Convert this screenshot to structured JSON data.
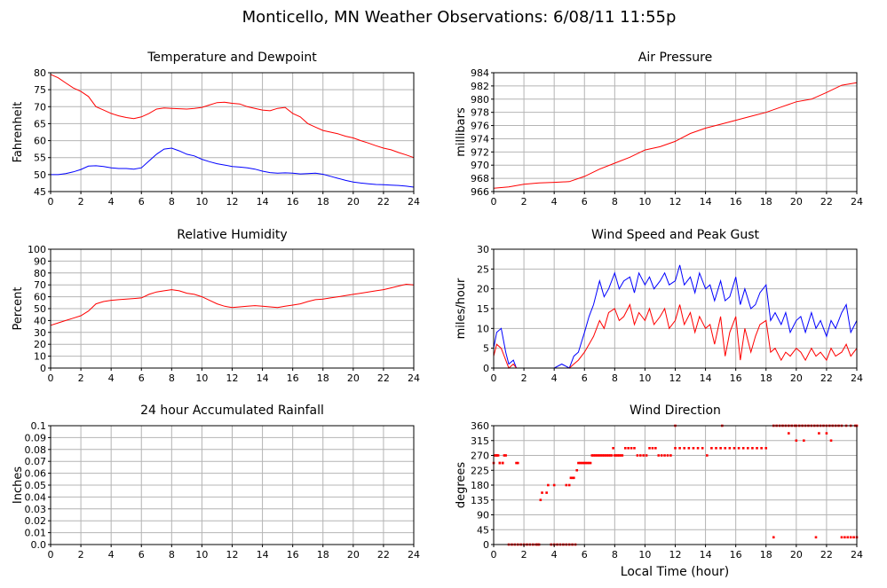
{
  "page": {
    "title": "Monticello, MN Weather Observations: 6/08/11 11:55p",
    "footer_xlabel": "Local Time (hour)"
  },
  "colors": {
    "red": "#ff0000",
    "blue": "#0000ff",
    "grid": "#b4b4b4",
    "frame": "#000000"
  },
  "x_ticks": [
    0,
    2,
    4,
    6,
    8,
    10,
    12,
    14,
    16,
    18,
    20,
    22,
    24
  ],
  "chart_data": [
    {
      "id": "temp",
      "type": "line",
      "title": "Temperature and Dewpoint",
      "xlabel": "",
      "ylabel": "Fahrenheit",
      "xlim": [
        0,
        24
      ],
      "ylim": [
        45,
        80
      ],
      "yticks": [
        45,
        50,
        55,
        60,
        65,
        70,
        75,
        80
      ],
      "grid": true,
      "series": [
        {
          "color": "#ff0000",
          "style": "line",
          "x": [
            0,
            0.5,
            1,
            1.5,
            2,
            2.5,
            3,
            3.5,
            4,
            4.5,
            5,
            5.5,
            6,
            6.5,
            7,
            7.5,
            8,
            8.5,
            9,
            9.5,
            10,
            10.5,
            11,
            11.5,
            12,
            12.5,
            13,
            13.5,
            14,
            14.5,
            15,
            15.5,
            16,
            16.5,
            17,
            17.5,
            18,
            18.5,
            19,
            19.5,
            20,
            20.5,
            21,
            21.5,
            22,
            22.5,
            23,
            23.5,
            24
          ],
          "y": [
            79.5,
            78.5,
            77,
            75.5,
            74.5,
            73,
            70,
            69,
            68,
            67.3,
            66.8,
            66.5,
            67,
            68,
            69.3,
            69.6,
            69.5,
            69.4,
            69.3,
            69.5,
            69.8,
            70.5,
            71.2,
            71.3,
            71,
            70.8,
            70,
            69.5,
            69,
            68.8,
            69.5,
            69.8,
            68,
            67,
            65,
            64,
            63,
            62.5,
            62,
            61.3,
            60.8,
            60,
            59.3,
            58.5,
            57.8,
            57.3,
            56.5,
            55.8,
            55
          ]
        },
        {
          "color": "#0000ff",
          "style": "line",
          "x": [
            0,
            0.5,
            1,
            1.5,
            2,
            2.5,
            3,
            3.5,
            4,
            4.5,
            5,
            5.5,
            6,
            6.5,
            7,
            7.5,
            8,
            8.5,
            9,
            9.5,
            10,
            10.5,
            11,
            11.5,
            12,
            12.5,
            13,
            13.5,
            14,
            14.5,
            15,
            15.5,
            16,
            16.5,
            17,
            17.5,
            18,
            18.5,
            19,
            19.5,
            20,
            20.5,
            21,
            21.5,
            22,
            22.5,
            23,
            23.5,
            24
          ],
          "y": [
            50,
            50,
            50.3,
            50.8,
            51.5,
            52.5,
            52.6,
            52.4,
            52,
            51.8,
            51.8,
            51.6,
            52,
            54,
            56,
            57.5,
            57.8,
            57,
            56,
            55.5,
            54.5,
            53.8,
            53.2,
            52.8,
            52.4,
            52.2,
            52,
            51.6,
            51,
            50.6,
            50.4,
            50.5,
            50.4,
            50.2,
            50.3,
            50.4,
            50.1,
            49.5,
            48.9,
            48.3,
            47.8,
            47.5,
            47.3,
            47.1,
            47,
            46.9,
            46.8,
            46.6,
            46.3
          ]
        }
      ]
    },
    {
      "id": "pressure",
      "type": "line",
      "title": "Air Pressure",
      "xlabel": "",
      "ylabel": "millibars",
      "xlim": [
        0,
        24
      ],
      "ylim": [
        966,
        984
      ],
      "yticks": [
        966,
        968,
        970,
        972,
        974,
        976,
        978,
        980,
        982,
        984
      ],
      "grid": true,
      "series": [
        {
          "color": "#ff0000",
          "style": "line",
          "x": [
            0,
            1,
            2,
            3,
            4,
            5,
            6,
            7,
            8,
            9,
            10,
            11,
            12,
            13,
            14,
            15,
            16,
            17,
            18,
            19,
            20,
            21,
            22,
            23,
            24
          ],
          "y": [
            966.5,
            966.7,
            967.1,
            967.3,
            967.4,
            967.5,
            968.3,
            969.4,
            970.3,
            971.2,
            972.3,
            972.8,
            973.6,
            974.8,
            975.6,
            976.2,
            976.8,
            977.4,
            978,
            978.8,
            979.6,
            980,
            981,
            982.1,
            982.5
          ]
        }
      ]
    },
    {
      "id": "humidity",
      "type": "line",
      "title": "Relative Humidity",
      "xlabel": "",
      "ylabel": "Percent",
      "xlim": [
        0,
        24
      ],
      "ylim": [
        0,
        100
      ],
      "yticks": [
        0,
        10,
        20,
        30,
        40,
        50,
        60,
        70,
        80,
        90,
        100
      ],
      "grid": true,
      "series": [
        {
          "color": "#ff0000",
          "style": "line",
          "x": [
            0,
            0.5,
            1,
            1.5,
            2,
            2.5,
            3,
            3.5,
            4,
            4.5,
            5,
            5.5,
            6,
            6.5,
            7,
            7.5,
            8,
            8.5,
            9,
            9.5,
            10,
            10.5,
            11,
            11.5,
            12,
            12.5,
            13,
            13.5,
            14,
            14.5,
            15,
            15.5,
            16,
            16.5,
            17,
            17.5,
            18,
            18.5,
            19,
            19.5,
            20,
            20.5,
            21,
            21.5,
            22,
            22.5,
            23,
            23.5,
            24
          ],
          "y": [
            36,
            38,
            40,
            42,
            44,
            48,
            54,
            56,
            57,
            57.5,
            58,
            58.5,
            59,
            62,
            64,
            65,
            66,
            65,
            63,
            62,
            60,
            57,
            54,
            52,
            51,
            51.5,
            52,
            52.5,
            52,
            51.5,
            51,
            52,
            53,
            54,
            56,
            57.5,
            58,
            59,
            60,
            61,
            62,
            63,
            64,
            65,
            66,
            67.5,
            69,
            70.5,
            70
          ]
        }
      ]
    },
    {
      "id": "wind",
      "type": "line",
      "title": "Wind Speed and Peak Gust",
      "xlabel": "",
      "ylabel": "miles/hour",
      "xlim": [
        0,
        24
      ],
      "ylim": [
        0,
        30
      ],
      "yticks": [
        0,
        5,
        10,
        15,
        20,
        25,
        30
      ],
      "grid": true,
      "series": [
        {
          "color": "#0000ff",
          "style": "line",
          "x": [
            0,
            0.2,
            0.5,
            0.8,
            1,
            1.3,
            1.5,
            1.8,
            2,
            3,
            4,
            4.5,
            5,
            5.3,
            5.6,
            6,
            6.3,
            6.6,
            7,
            7.3,
            7.6,
            8,
            8.3,
            8.6,
            9,
            9.3,
            9.6,
            10,
            10.3,
            10.6,
            11,
            11.3,
            11.6,
            12,
            12.3,
            12.6,
            13,
            13.3,
            13.6,
            14,
            14.3,
            14.6,
            15,
            15.3,
            15.6,
            16,
            16.3,
            16.6,
            17,
            17.3,
            17.6,
            18,
            18.3,
            18.6,
            19,
            19.3,
            19.6,
            20,
            20.3,
            20.6,
            21,
            21.3,
            21.6,
            22,
            22.3,
            22.6,
            23,
            23.3,
            23.6,
            24
          ],
          "y": [
            5,
            9,
            10,
            4,
            1,
            2,
            0,
            0,
            0,
            0,
            0,
            1,
            0,
            3,
            4,
            9,
            13,
            16,
            22,
            18,
            20,
            24,
            20,
            22,
            23,
            19,
            24,
            21,
            23,
            20,
            22,
            24,
            21,
            22,
            26,
            21,
            23,
            19,
            24,
            20,
            21,
            17,
            22,
            17,
            18,
            23,
            16,
            20,
            15,
            16,
            19,
            21,
            12,
            14,
            11,
            14,
            9,
            12,
            13,
            9,
            14,
            10,
            12,
            8,
            12,
            10,
            14,
            16,
            9,
            12
          ]
        },
        {
          "color": "#ff0000",
          "style": "line",
          "x": [
            0,
            0.2,
            0.5,
            0.8,
            1,
            1.3,
            1.5,
            1.8,
            2,
            3,
            4,
            4.5,
            5,
            5.3,
            5.6,
            6,
            6.3,
            6.6,
            7,
            7.3,
            7.6,
            8,
            8.3,
            8.6,
            9,
            9.3,
            9.6,
            10,
            10.3,
            10.6,
            11,
            11.3,
            11.6,
            12,
            12.3,
            12.6,
            13,
            13.3,
            13.6,
            14,
            14.3,
            14.6,
            15,
            15.3,
            15.6,
            16,
            16.3,
            16.6,
            17,
            17.3,
            17.6,
            18,
            18.3,
            18.6,
            19,
            19.3,
            19.6,
            20,
            20.3,
            20.6,
            21,
            21.3,
            21.6,
            22,
            22.3,
            22.6,
            23,
            23.3,
            23.6,
            24
          ],
          "y": [
            3,
            6,
            5,
            2,
            0,
            1,
            0,
            0,
            0,
            0,
            0,
            0,
            0,
            1,
            2,
            4,
            6,
            8,
            12,
            10,
            14,
            15,
            12,
            13,
            16,
            11,
            14,
            12,
            15,
            11,
            13,
            15,
            10,
            12,
            16,
            11,
            14,
            9,
            13,
            10,
            11,
            6,
            13,
            3,
            9,
            13,
            2,
            10,
            4,
            8,
            11,
            12,
            4,
            5,
            2,
            4,
            3,
            5,
            4,
            2,
            5,
            3,
            4,
            2,
            5,
            3,
            4,
            6,
            3,
            5
          ]
        }
      ]
    },
    {
      "id": "rain",
      "type": "line",
      "title": "24 hour Accumulated Rainfall",
      "xlabel": "",
      "ylabel": "Inches",
      "xlim": [
        0,
        24
      ],
      "ylim": [
        0,
        0.1
      ],
      "yticks": [
        0.0,
        0.01,
        0.02,
        0.03,
        0.04,
        0.05,
        0.06,
        0.07,
        0.08,
        0.09,
        0.1
      ],
      "ytick_labels": [
        "0.0",
        "0.01",
        "0.02",
        "0.03",
        "0.04",
        "0.05",
        "0.06",
        "0.07",
        "0.08",
        "0.09",
        "0.1"
      ],
      "grid": true,
      "series": [
        {
          "color": "#ff0000",
          "style": "line",
          "x": [
            0,
            24
          ],
          "y": [
            0,
            0
          ]
        }
      ]
    },
    {
      "id": "direction",
      "type": "scatter",
      "title": "Wind Direction",
      "xlabel": "Local Time (hour)",
      "ylabel": "degrees",
      "xlim": [
        0,
        24
      ],
      "ylim": [
        0,
        360
      ],
      "yticks": [
        0,
        45,
        90,
        135,
        180,
        225,
        270,
        315,
        360
      ],
      "grid": true,
      "series": [
        {
          "color": "#ff0000",
          "style": "dots",
          "x": [
            0,
            0.1,
            0.2,
            0.3,
            0.4,
            0.6,
            0.7,
            0.2,
            0.4,
            0.6,
            0.8,
            1.5,
            1.6,
            1.0,
            1.2,
            1.4,
            1.6,
            1.8,
            2.0,
            2.2,
            2.4,
            2.6,
            2.8,
            2.9,
            3.0,
            3.1,
            3.2,
            3.5,
            3.6,
            4.0,
            3.8,
            4.0,
            4.2,
            4.4,
            4.6,
            4.8,
            5.0,
            5.2,
            5.4,
            4.8,
            5.0,
            5.1,
            5.2,
            5.3,
            5.5,
            5.6,
            5.7,
            5.8,
            5.9,
            6.0,
            6.1,
            6.2,
            6.3,
            6.4,
            6.5,
            6.6,
            6.7,
            6.8,
            6.9,
            7.0,
            7.1,
            7.2,
            7.3,
            7.4,
            7.5,
            7.6,
            7.7,
            7.8,
            7.9,
            8.0,
            8.1,
            8.2,
            8.3,
            8.4,
            8.5,
            8.7,
            8.9,
            9.1,
            9.3,
            9.5,
            9.7,
            9.9,
            10.1,
            10.3,
            10.5,
            10.7,
            10.9,
            11.1,
            11.3,
            11.5,
            11.7,
            12.0,
            12.3,
            12.6,
            12.9,
            13.2,
            13.5,
            13.8,
            14.1,
            14.4,
            14.7,
            15.0,
            15.3,
            15.6,
            15.9,
            16.2,
            16.5,
            16.8,
            17.1,
            17.4,
            17.7,
            18.0,
            18.5,
            18.5,
            18.7,
            18.9,
            19.1,
            19.3,
            19.5,
            19.7,
            19.9,
            20.0,
            20.2,
            20.4,
            20.6,
            20.8,
            21.0,
            21.2,
            21.4,
            21.6,
            21.8,
            22.0,
            22.2,
            22.4,
            22.6,
            22.8,
            23.0,
            23.3,
            23.6,
            23.9,
            19.5,
            20.0,
            20.5,
            21.5,
            22.0,
            22.3,
            21.3,
            23.2,
            23.4,
            23.6,
            23.8,
            24.0,
            23.0,
            24.0,
            15.1,
            12.0
          ],
          "y": [
            247,
            270,
            270,
            270,
            247,
            247,
            270,
            270,
            247,
            247,
            270,
            247,
            247,
            0,
            0,
            0,
            0,
            0,
            0,
            0,
            0,
            0,
            0,
            0,
            0,
            135,
            157,
            157,
            180,
            180,
            0,
            0,
            0,
            0,
            0,
            0,
            0,
            0,
            0,
            180,
            180,
            202,
            202,
            202,
            225,
            247,
            247,
            247,
            247,
            247,
            247,
            247,
            247,
            247,
            270,
            270,
            270,
            270,
            270,
            270,
            270,
            270,
            270,
            270,
            270,
            270,
            270,
            270,
            292,
            270,
            270,
            270,
            270,
            270,
            270,
            292,
            292,
            292,
            292,
            270,
            270,
            270,
            270,
            292,
            292,
            292,
            270,
            270,
            270,
            270,
            270,
            292,
            292,
            292,
            292,
            292,
            292,
            292,
            270,
            292,
            292,
            292,
            292,
            292,
            292,
            292,
            292,
            292,
            292,
            292,
            292,
            292,
            22,
            360,
            360,
            360,
            360,
            360,
            360,
            360,
            360,
            360,
            360,
            360,
            360,
            360,
            360,
            360,
            360,
            360,
            360,
            360,
            360,
            360,
            360,
            360,
            360,
            360,
            360,
            360,
            337,
            315,
            315,
            337,
            337,
            315,
            22,
            22,
            22,
            22,
            22,
            22,
            22,
            360,
            360,
            360
          ]
        }
      ]
    }
  ]
}
